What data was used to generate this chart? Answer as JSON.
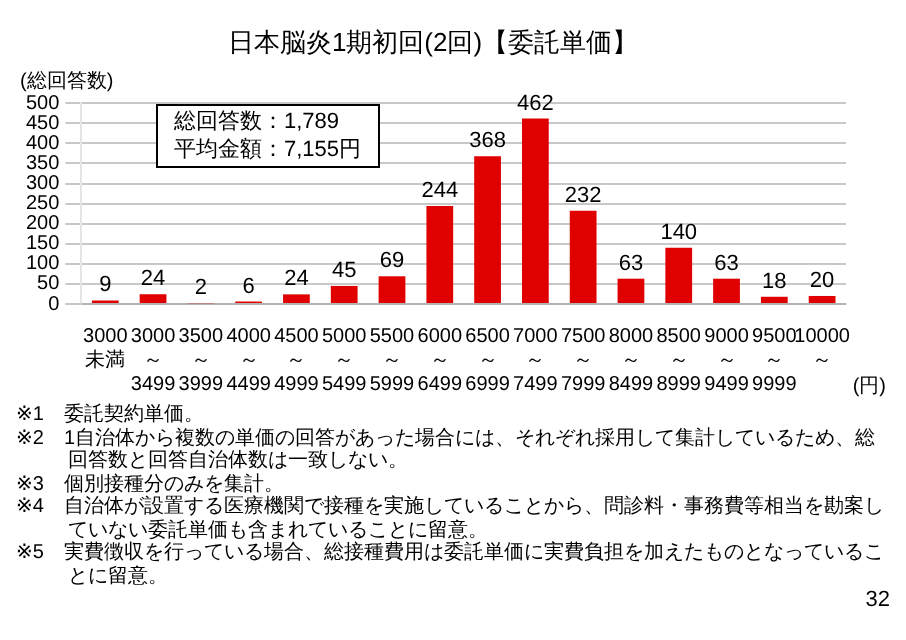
{
  "chart_data": {
    "type": "bar",
    "title": "日本脳炎1期初回(2回)【委託単価】",
    "ylabel": "(総回答数)",
    "xlabel": "(円)",
    "categories": [
      "3000未満",
      "3000～3499",
      "3500～3999",
      "4000～4499",
      "4500～4999",
      "5000～5499",
      "5500～5999",
      "6000～6499",
      "6500～6999",
      "7000～7499",
      "7500～7999",
      "8000～8499",
      "8500～8999",
      "9000～9499",
      "9500～9999",
      "10000～"
    ],
    "values": [
      9,
      24,
      2,
      6,
      24,
      45,
      69,
      244,
      368,
      462,
      232,
      63,
      140,
      63,
      18,
      20
    ],
    "color": "#e00000",
    "ylim": [
      0,
      500
    ],
    "yticks": [
      0,
      50,
      100,
      150,
      200,
      250,
      300,
      350,
      400,
      450,
      500
    ],
    "grid": "y",
    "legend": false,
    "data_labels": true,
    "annotations": [
      "総回答数：1,789",
      "平均金額：7,155円",
      "※1　委託契約単価。",
      "※2　1自治体から複数の単価の回答があった場合には、それぞれ採用して集計しているため、総回答数と回答自治体数は一致しない。",
      "※3　個別接種分のみを集計。",
      "※4　自治体が設置する医療機関で接種を実施していることから、問診料・事務費等相当を勘案していない委託単価も含まれていることに留意。",
      "※5　実費徴収を行っている場合、総接種費用は委託単価に実費負担を加えたものとなっていることに留意。",
      "32"
    ]
  }
}
